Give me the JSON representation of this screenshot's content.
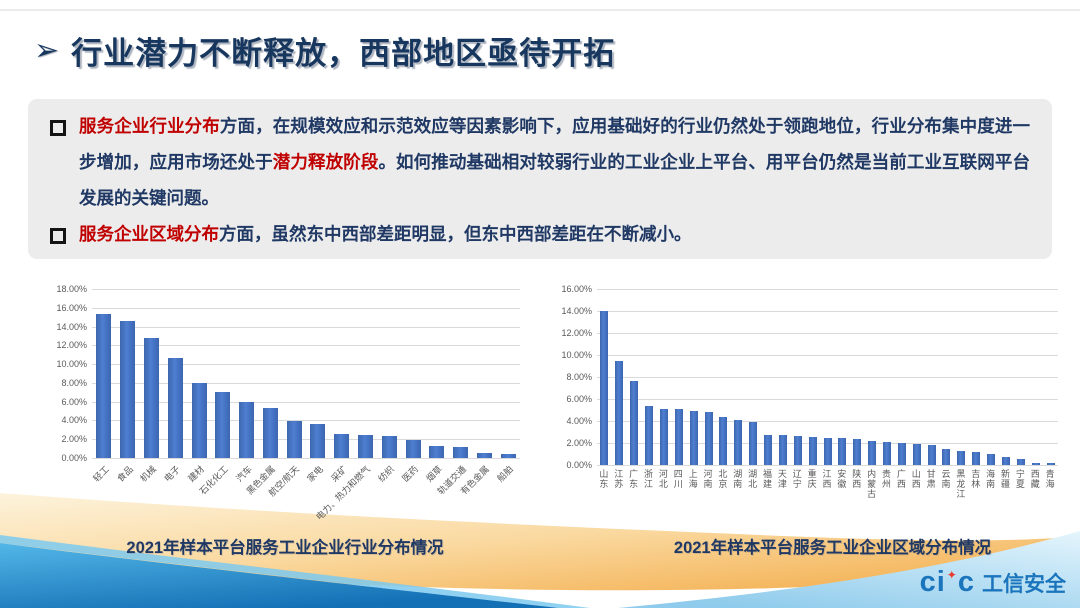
{
  "title": {
    "text": "行业潜力不断释放，西部地区亟待开拓"
  },
  "summary": {
    "bullets": [
      {
        "segments": [
          {
            "text": "服务企业行业分布",
            "emph": true
          },
          {
            "text": "方面，在规模效应和示范效应等因素影响下，应用基础好的行业仍然处于领跑地位，行业分布集中度进一步增加，应用市场还处于",
            "emph": false
          },
          {
            "text": "潜力释放阶段",
            "emph": true
          },
          {
            "text": "。如何推动基础相对较弱行业的工业企业上平台、用平台仍然是当前工业互联网平台发展的关键问题。",
            "emph": false
          }
        ]
      },
      {
        "segments": [
          {
            "text": "服务企业区域分布",
            "emph": true
          },
          {
            "text": "方面，虽然东中西部差距明显，但东中西部差距在不断减小。",
            "emph": false
          }
        ]
      }
    ]
  },
  "chart_data": [
    {
      "type": "bar",
      "title": "2021年样本平台服务工业企业行业分布情况",
      "categories": [
        "轻工",
        "食品",
        "机械",
        "电子",
        "建材",
        "石化化工",
        "汽车",
        "黑色金属",
        "航空/航天",
        "家电",
        "采矿",
        "电力、热力和燃气",
        "纺织",
        "医药",
        "烟草",
        "轨道交通",
        "有色金属",
        "船舶"
      ],
      "values": [
        15.3,
        14.6,
        12.8,
        10.6,
        8.0,
        7.0,
        6.0,
        5.3,
        3.9,
        3.6,
        2.6,
        2.4,
        2.3,
        1.9,
        1.3,
        1.2,
        0.5,
        0.4
      ],
      "xlabel": "",
      "ylabel": "",
      "ylim": [
        0,
        18
      ],
      "ytick_step": 2,
      "ytick_format": "percent2",
      "grid": true,
      "legend": "none",
      "label_rotation": "diagonal"
    },
    {
      "type": "bar",
      "title": "2021年样本平台服务工业企业区域分布情况",
      "categories": [
        "山东",
        "江苏",
        "广东",
        "浙江",
        "河北",
        "四川",
        "上海",
        "河南",
        "北京",
        "湖南",
        "湖北",
        "福建",
        "天津",
        "辽宁",
        "重庆",
        "江西",
        "安徽",
        "陕西",
        "内蒙古",
        "贵州",
        "广西",
        "山西",
        "甘肃",
        "云南",
        "黑龙江",
        "吉林",
        "海南",
        "新疆",
        "宁夏",
        "西藏",
        "青海"
      ],
      "values": [
        14.0,
        9.5,
        7.6,
        5.4,
        5.1,
        5.05,
        4.9,
        4.85,
        4.4,
        4.05,
        3.9,
        2.75,
        2.7,
        2.6,
        2.55,
        2.5,
        2.45,
        2.35,
        2.2,
        2.1,
        2.0,
        1.9,
        1.8,
        1.45,
        1.3,
        1.2,
        1.0,
        0.7,
        0.55,
        0.2,
        0.15
      ],
      "xlabel": "",
      "ylabel": "",
      "ylim": [
        0,
        16
      ],
      "ytick_step": 2,
      "ytick_format": "percent2",
      "grid": true,
      "legend": "none",
      "label_rotation": "vertical"
    }
  ],
  "logo": {
    "prefix": "ci",
    "suffix": "c",
    "star_icon": "✦",
    "name": "工信安全"
  },
  "colors": {
    "title_navy": "#17375e",
    "body_navy": "#1f3864",
    "emphasis_red": "#c00000",
    "bar_blue": "#4472c4",
    "axis_gray": "#595959",
    "gridline_gray": "#dadada",
    "panel_gray": "#ececec",
    "logo_blue": "#1b75bc",
    "logo_star_red": "#e8392b",
    "wave_orange": "#f3ae4e",
    "wave_blue_dark": "#1470b5",
    "wave_blue_light": "#8ecbec"
  }
}
